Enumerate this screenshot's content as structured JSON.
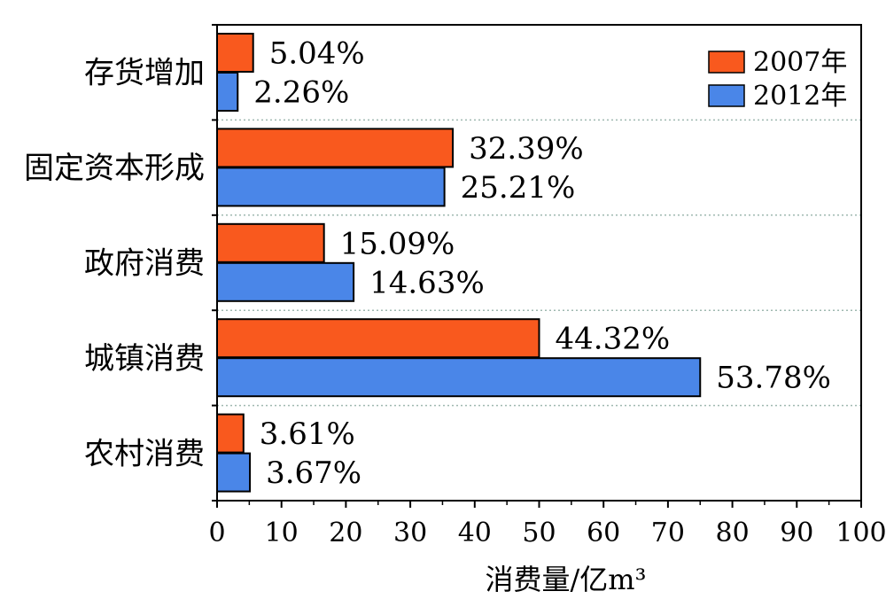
{
  "chart_data": {
    "type": "bar",
    "orientation": "horizontal",
    "categories": [
      "存货增加",
      "固定资本形成",
      "政府消费",
      "城镇消费",
      "农村消费"
    ],
    "series": [
      {
        "name": "2007年",
        "color": "#F9591E",
        "values": [
          5.6,
          36.6,
          16.6,
          50.0,
          4.1
        ],
        "labels": [
          "5.04%",
          "32.39%",
          "15.09%",
          "44.32%",
          "3.61%"
        ]
      },
      {
        "name": "2012年",
        "color": "#4A86E8",
        "values": [
          3.2,
          35.3,
          21.2,
          75.0,
          5.1
        ],
        "labels": [
          "2.26%",
          "25.21%",
          "14.63%",
          "53.78%",
          "3.67%"
        ]
      }
    ],
    "xlabel": "消费量/亿m³",
    "ylabel": "",
    "xlim": [
      0,
      100
    ],
    "x_ticks": [
      0,
      10,
      20,
      30,
      40,
      50,
      60,
      70,
      80,
      90,
      100
    ],
    "grid": "horizontal dotted separators between categories",
    "legend_position": "top-right"
  }
}
